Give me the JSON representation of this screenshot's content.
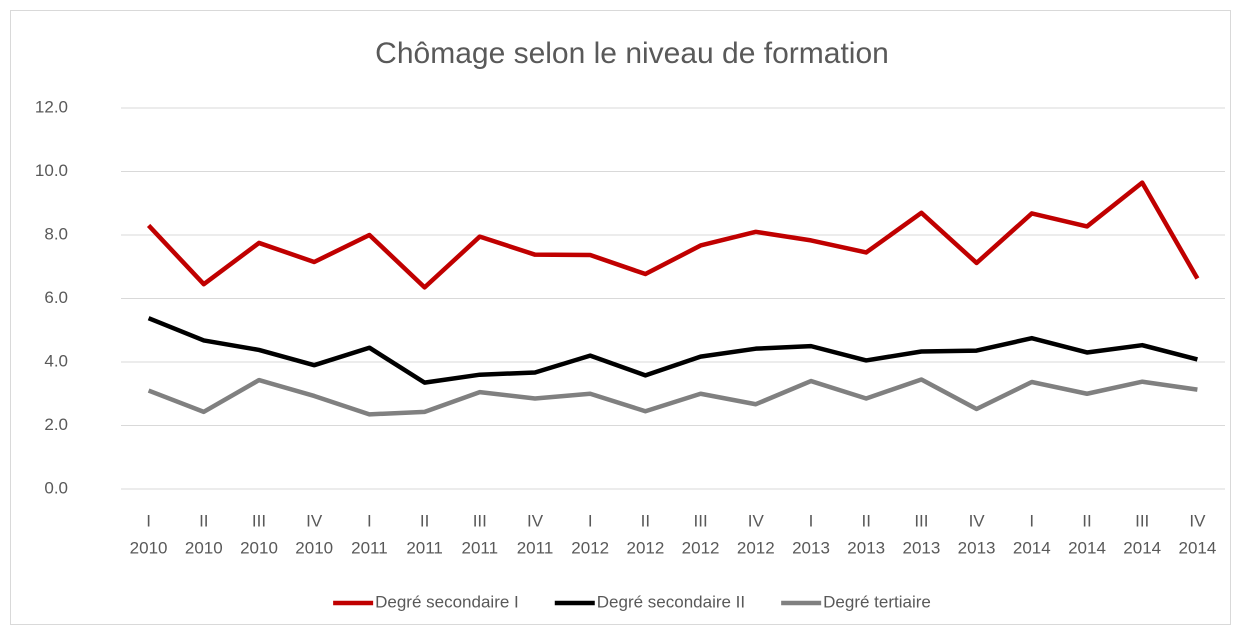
{
  "chart_data": {
    "type": "line",
    "title": "Chômage selon le niveau de formation",
    "categories": [
      [
        "I",
        "2010"
      ],
      [
        "II",
        "2010"
      ],
      [
        "III",
        "2010"
      ],
      [
        "IV",
        "2010"
      ],
      [
        "I",
        "2011"
      ],
      [
        "II",
        "2011"
      ],
      [
        "III",
        "2011"
      ],
      [
        "IV",
        "2011"
      ],
      [
        "I",
        "2012"
      ],
      [
        "II",
        "2012"
      ],
      [
        "III",
        "2012"
      ],
      [
        "IV",
        "2012"
      ],
      [
        "I",
        "2013"
      ],
      [
        "II",
        "2013"
      ],
      [
        "III",
        "2013"
      ],
      [
        "IV",
        "2013"
      ],
      [
        "I",
        "2014"
      ],
      [
        "II",
        "2014"
      ],
      [
        "III",
        "2014"
      ],
      [
        "IV",
        "2014"
      ]
    ],
    "series": [
      {
        "name": "Degré secondaire I",
        "color": "#c00000",
        "values": [
          8.3,
          6.45,
          7.75,
          7.15,
          8.0,
          6.35,
          7.95,
          7.38,
          7.37,
          6.77,
          7.67,
          8.1,
          7.83,
          7.45,
          8.7,
          7.12,
          8.68,
          8.27,
          9.65,
          6.63
        ]
      },
      {
        "name": "Degré secondaire II",
        "color": "#000000",
        "values": [
          5.38,
          4.68,
          4.38,
          3.9,
          4.45,
          3.35,
          3.6,
          3.67,
          4.2,
          3.58,
          4.17,
          4.42,
          4.5,
          4.05,
          4.33,
          4.36,
          4.75,
          4.3,
          4.53,
          4.08
        ]
      },
      {
        "name": "Degré tertiaire",
        "color": "#808080",
        "values": [
          3.1,
          2.43,
          3.43,
          2.93,
          2.35,
          2.43,
          3.05,
          2.85,
          3.0,
          2.45,
          3.0,
          2.67,
          3.4,
          2.85,
          3.45,
          2.52,
          3.37,
          3.0,
          3.38,
          3.13
        ]
      }
    ],
    "ylim": [
      0,
      12
    ],
    "yticks": [
      {
        "value": 0,
        "label": "0.0"
      },
      {
        "value": 2,
        "label": "2.0"
      },
      {
        "value": 4,
        "label": "4.0"
      },
      {
        "value": 6,
        "label": "6.0"
      },
      {
        "value": 8,
        "label": "8.0"
      },
      {
        "value": 10,
        "label": "10.0"
      },
      {
        "value": 12,
        "label": "12.0"
      }
    ],
    "grid": true,
    "legend": "bottom"
  }
}
